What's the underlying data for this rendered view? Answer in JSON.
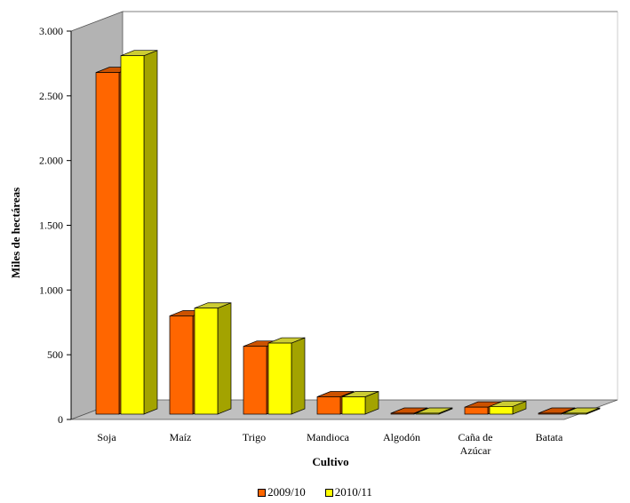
{
  "chart_data": {
    "type": "bar",
    "three_d": true,
    "categories": [
      "Soja",
      "Maíz",
      "Trigo",
      "Mandioca",
      "Algodón",
      "Caña de Azúcar",
      "Batata"
    ],
    "category_lines": [
      [
        "Soja"
      ],
      [
        "Maíz"
      ],
      [
        "Trigo"
      ],
      [
        "Mandioca"
      ],
      [
        "Algodón"
      ],
      [
        "Caña de",
        "Azúcar"
      ],
      [
        "Batata"
      ]
    ],
    "series": [
      {
        "name": "2009/10",
        "values": [
          2680,
          800,
          565,
          175,
          5,
          95,
          5
        ],
        "color": "#FF6600",
        "dark": "#B84A00",
        "top": "#CC5200"
      },
      {
        "name": "2010/11",
        "values": [
          2810,
          860,
          590,
          175,
          20,
          100,
          10
        ],
        "color": "#FFFF00",
        "dark": "#A3A300",
        "top": "#CCCC33"
      }
    ],
    "xlabel": "Cultivo",
    "ylabel": "Miles de hectáreas",
    "ylim": [
      0,
      3000
    ],
    "yticks": [
      0,
      500,
      1000,
      1500,
      2000,
      2500,
      3000
    ],
    "ytick_labels": [
      "0",
      "500",
      "1.000",
      "1.500",
      "2.000",
      "2.500",
      "3.000"
    ],
    "grid": false,
    "legend_position": "bottom",
    "colors": {
      "wall": "#B3B3B3",
      "floor": "#C0C0C0",
      "axis": "#000000"
    }
  }
}
